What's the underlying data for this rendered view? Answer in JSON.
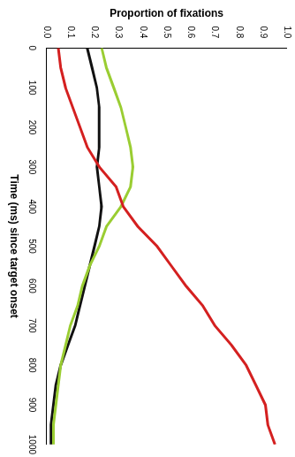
{
  "chart_data": {
    "type": "line",
    "x_label": "Time (ms) since target onset",
    "y_label": "Proportion of fixations",
    "x": [
      0,
      50,
      100,
      150,
      200,
      250,
      300,
      350,
      400,
      450,
      500,
      550,
      600,
      650,
      700,
      750,
      800,
      850,
      900,
      950,
      1000
    ],
    "series": [
      {
        "color": "#d42020",
        "values": [
          0.05,
          0.06,
          0.08,
          0.11,
          0.14,
          0.17,
          0.22,
          0.29,
          0.32,
          0.38,
          0.46,
          0.52,
          0.58,
          0.65,
          0.7,
          0.77,
          0.83,
          0.87,
          0.91,
          0.92,
          0.95
        ]
      },
      {
        "color": "#9acd32",
        "values": [
          0.23,
          0.25,
          0.28,
          0.31,
          0.33,
          0.35,
          0.36,
          0.35,
          0.31,
          0.25,
          0.22,
          0.18,
          0.15,
          0.13,
          0.1,
          0.08,
          0.06,
          0.05,
          0.04,
          0.03,
          0.03
        ]
      },
      {
        "color": "#111111",
        "values": [
          0.17,
          0.19,
          0.21,
          0.22,
          0.22,
          0.22,
          0.21,
          0.22,
          0.23,
          0.22,
          0.2,
          0.18,
          0.16,
          0.14,
          0.12,
          0.09,
          0.06,
          0.04,
          0.03,
          0.02,
          0.02
        ]
      }
    ],
    "xlim": [
      0,
      1000
    ],
    "xticks": [
      0,
      100,
      200,
      300,
      400,
      500,
      600,
      700,
      800,
      900,
      1000
    ],
    "ylim": [
      0,
      1
    ],
    "yticks": [
      {
        "value": 0,
        "label": "0.0"
      },
      {
        "value": 0.1,
        "label": "0.1"
      },
      {
        "value": 0.2,
        "label": "0.2"
      },
      {
        "value": 0.3,
        "label": "0.3"
      },
      {
        "value": 0.4,
        "label": "0.4"
      },
      {
        "value": 0.5,
        "label": "0.5"
      },
      {
        "value": 0.6,
        "label": "0.6"
      },
      {
        "value": 0.7,
        "label": "0.7"
      },
      {
        "value": 0.8,
        "label": "0.8"
      },
      {
        "value": 0.9,
        "label": "0.9"
      },
      {
        "value": 1,
        "label": "1.0"
      }
    ],
    "grid": false
  }
}
